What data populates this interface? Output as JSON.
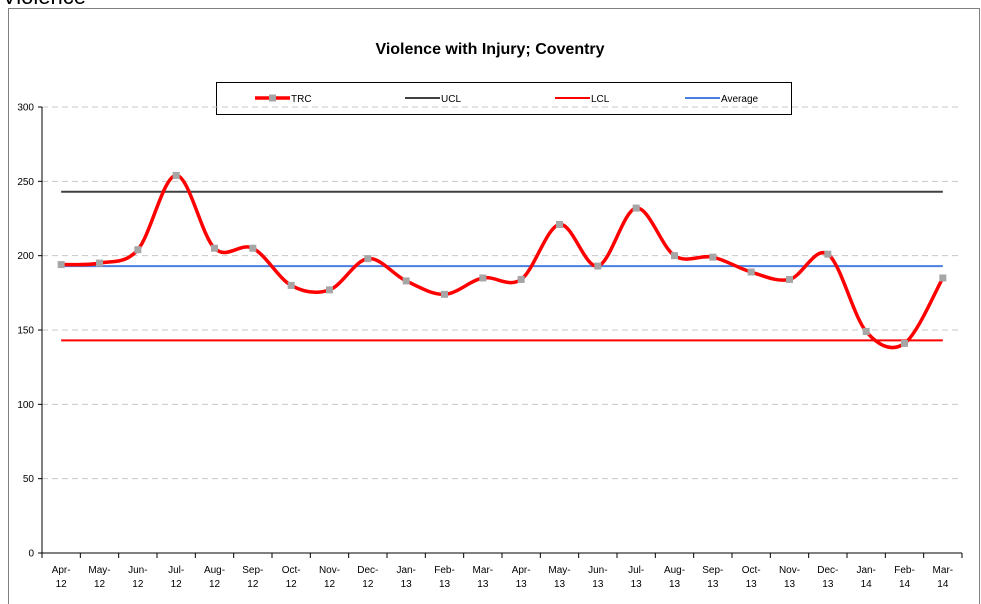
{
  "page_title": "Violence",
  "chart_data": {
    "type": "line",
    "title": "Violence with Injury; Coventry",
    "categories": [
      [
        "Apr-",
        "12"
      ],
      [
        "May-",
        "12"
      ],
      [
        "Jun-",
        "12"
      ],
      [
        "Jul-",
        "12"
      ],
      [
        "Aug-",
        "12"
      ],
      [
        "Sep-",
        "12"
      ],
      [
        "Oct-",
        "12"
      ],
      [
        "Nov-",
        "12"
      ],
      [
        "Dec-",
        "12"
      ],
      [
        "Jan-",
        "13"
      ],
      [
        "Feb-",
        "13"
      ],
      [
        "Mar-",
        "13"
      ],
      [
        "Apr-",
        "13"
      ],
      [
        "May-",
        "13"
      ],
      [
        "Jun-",
        "13"
      ],
      [
        "Jul-",
        "13"
      ],
      [
        "Aug-",
        "13"
      ],
      [
        "Sep-",
        "13"
      ],
      [
        "Oct-",
        "13"
      ],
      [
        "Nov-",
        "13"
      ],
      [
        "Dec-",
        "13"
      ],
      [
        "Jan-",
        "14"
      ],
      [
        "Feb-",
        "14"
      ],
      [
        "Mar-",
        "14"
      ]
    ],
    "series": [
      {
        "name": "TRC",
        "color": "#ff0000",
        "marker_color": "#a6a6a6",
        "smooth": true,
        "values": [
          194,
          195,
          204,
          254,
          205,
          205,
          180,
          177,
          198,
          183,
          174,
          185,
          184,
          221,
          193,
          232,
          200,
          199,
          189,
          184,
          201,
          149,
          141,
          185
        ]
      },
      {
        "name": "UCL",
        "color": "#404040",
        "values": [
          243,
          243,
          243,
          243,
          243,
          243,
          243,
          243,
          243,
          243,
          243,
          243,
          243,
          243,
          243,
          243,
          243,
          243,
          243,
          243,
          243,
          243,
          243,
          243
        ]
      },
      {
        "name": "LCL",
        "color": "#ff0000",
        "values": [
          143,
          143,
          143,
          143,
          143,
          143,
          143,
          143,
          143,
          143,
          143,
          143,
          143,
          143,
          143,
          143,
          143,
          143,
          143,
          143,
          143,
          143,
          143,
          143
        ]
      },
      {
        "name": "Average",
        "color": "#4a7ee0",
        "values": [
          193,
          193,
          193,
          193,
          193,
          193,
          193,
          193,
          193,
          193,
          193,
          193,
          193,
          193,
          193,
          193,
          193,
          193,
          193,
          193,
          193,
          193,
          193,
          193
        ]
      }
    ],
    "ylim": [
      0,
      300
    ],
    "yticks": [
      0,
      50,
      100,
      150,
      200,
      250,
      300
    ],
    "grid": true,
    "legend": "top"
  }
}
